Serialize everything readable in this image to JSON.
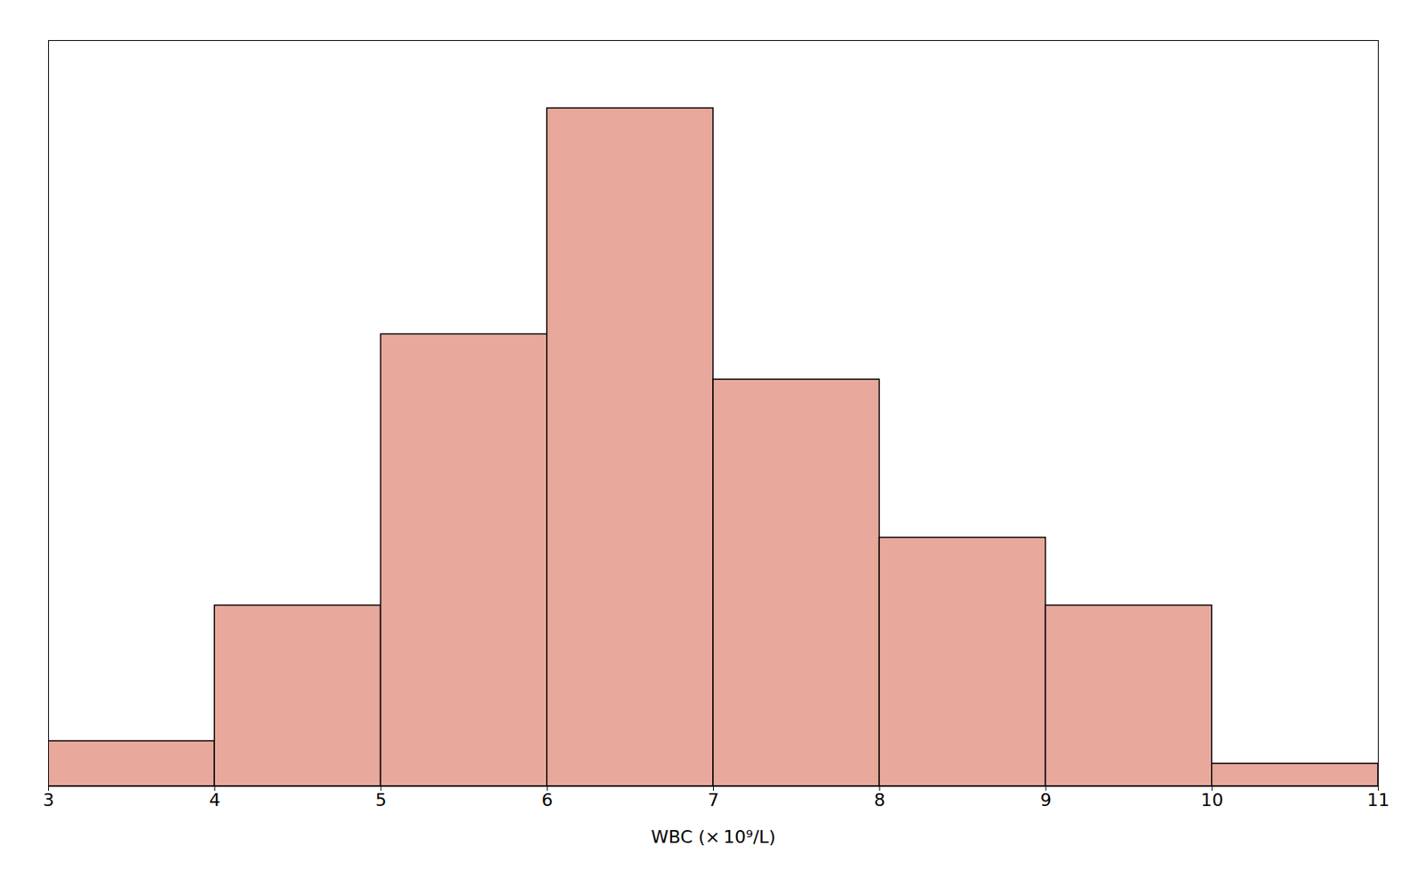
{
  "chart_data": {
    "type": "histogram",
    "xlabel": "WBC (× 10⁹/L)",
    "bins": [
      3,
      4,
      5,
      6,
      7,
      8,
      9,
      10,
      11
    ],
    "values": [
      2,
      8,
      20,
      30,
      18,
      11,
      8,
      1
    ],
    "color": "#e8a89c",
    "xlim": [
      3,
      11
    ],
    "ylim": [
      0,
      33
    ],
    "xticks": [
      3,
      4,
      5,
      6,
      7,
      8,
      9,
      10,
      11
    ],
    "tick_labels": "x",
    "grid": false
  }
}
